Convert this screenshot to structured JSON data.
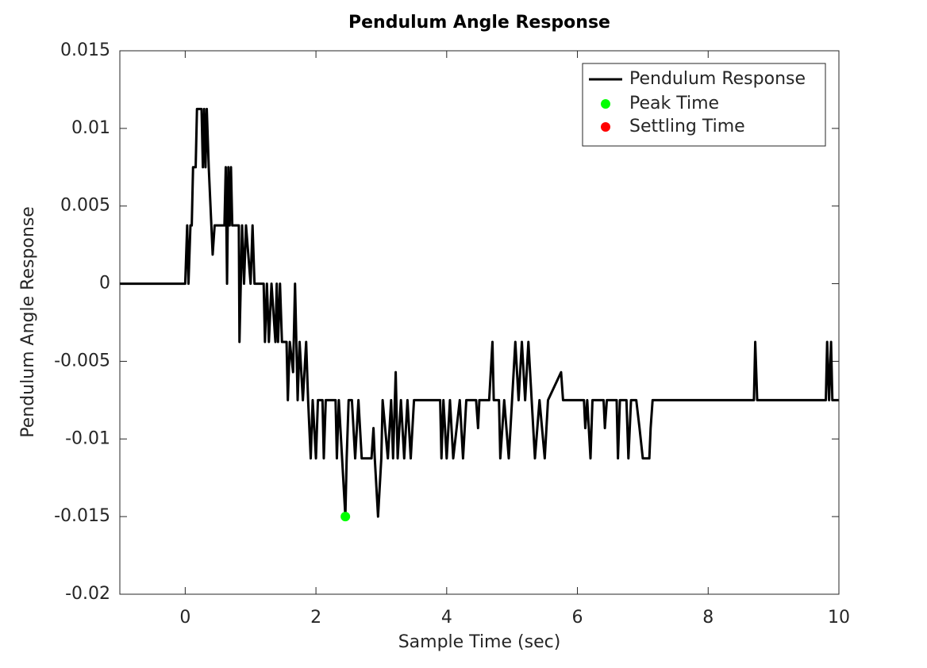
{
  "chart_data": {
    "type": "line",
    "title": "Pendulum Angle Response",
    "x_label": "Sample Time (sec)",
    "y_label": "Pendulum Angle Response",
    "xlim": [
      -1,
      10
    ],
    "xticks": [
      0,
      2,
      4,
      6,
      8,
      10
    ],
    "ylim": [
      -0.02,
      0.015
    ],
    "yticks": [
      -0.02,
      -0.015,
      -0.01,
      -0.005,
      0,
      0.005,
      0.01,
      0.015
    ],
    "grid": false,
    "legend": "northeast",
    "series": [
      {
        "name": "Pendulum Response",
        "color": "#000000",
        "kind": "line",
        "x": [
          -1,
          0,
          0.03,
          0.05,
          0.08,
          0.1,
          0.12,
          0.16,
          0.18,
          0.25,
          0.27,
          0.29,
          0.31,
          0.33,
          0.36,
          0.4,
          0.42,
          0.45,
          0.6,
          0.62,
          0.64,
          0.66,
          0.68,
          0.7,
          0.72,
          0.82,
          0.83,
          0.85,
          0.87,
          0.9,
          0.93,
          1.0,
          1.03,
          1.06,
          1.2,
          1.22,
          1.25,
          1.28,
          1.32,
          1.38,
          1.4,
          1.42,
          1.45,
          1.48,
          1.55,
          1.57,
          1.6,
          1.65,
          1.68,
          1.7,
          1.72,
          1.75,
          1.8,
          1.85,
          1.88,
          1.92,
          1.95,
          2.0,
          2.03,
          2.1,
          2.12,
          2.15,
          2.3,
          2.32,
          2.35,
          2.4,
          2.45,
          2.47,
          2.5,
          2.55,
          2.6,
          2.65,
          2.7,
          2.85,
          2.88,
          2.9,
          2.95,
          3.0,
          3.02,
          3.1,
          3.15,
          3.18,
          3.22,
          3.25,
          3.3,
          3.35,
          3.4,
          3.45,
          3.5,
          3.9,
          3.92,
          3.95,
          4.0,
          4.05,
          4.1,
          4.2,
          4.25,
          4.3,
          4.45,
          4.48,
          4.5,
          4.65,
          4.7,
          4.72,
          4.8,
          4.82,
          4.88,
          4.95,
          5.0,
          5.05,
          5.1,
          5.15,
          5.2,
          5.25,
          5.3,
          5.35,
          5.42,
          5.5,
          5.55,
          5.75,
          5.78,
          6.1,
          6.12,
          6.15,
          6.2,
          6.23,
          6.4,
          6.42,
          6.45,
          6.6,
          6.62,
          6.65,
          6.75,
          6.78,
          6.82,
          6.9,
          6.95,
          7.0,
          7.1,
          7.12,
          7.15,
          8.7,
          8.72,
          8.75,
          9.8,
          9.82,
          9.85,
          9.88,
          9.9,
          10
        ],
        "values": [
          0,
          0,
          0.00375,
          0,
          0.00375,
          0.00375,
          0.0075,
          0.0075,
          0.01125,
          0.01125,
          0.0075,
          0.01125,
          0.0075,
          0.01125,
          0.0075,
          0.00375,
          0.001875,
          0.00375,
          0.00375,
          0.0075,
          0,
          0.0075,
          0.00375,
          0.0075,
          0.00375,
          0.00375,
          -0.00375,
          0,
          0.00375,
          0,
          0.00375,
          0,
          0.00375,
          0,
          0,
          -0.00375,
          0,
          -0.00375,
          0,
          -0.00375,
          0,
          -0.00375,
          0,
          -0.00375,
          -0.00375,
          -0.0075,
          -0.00375,
          -0.0057,
          0,
          -0.00375,
          -0.0075,
          -0.00375,
          -0.0075,
          -0.00375,
          -0.0075,
          -0.01125,
          -0.0075,
          -0.01125,
          -0.0075,
          -0.0075,
          -0.01125,
          -0.0075,
          -0.0075,
          -0.01125,
          -0.0075,
          -0.01125,
          -0.015,
          -0.01125,
          -0.0075,
          -0.0075,
          -0.01125,
          -0.0075,
          -0.01125,
          -0.01125,
          -0.0093,
          -0.01125,
          -0.015,
          -0.01125,
          -0.0075,
          -0.01125,
          -0.0075,
          -0.01125,
          -0.0057,
          -0.01125,
          -0.0075,
          -0.01125,
          -0.0075,
          -0.01125,
          -0.0075,
          -0.0075,
          -0.01125,
          -0.0075,
          -0.01125,
          -0.0075,
          -0.01125,
          -0.0075,
          -0.01125,
          -0.0075,
          -0.0075,
          -0.0093,
          -0.0075,
          -0.0075,
          -0.00375,
          -0.0075,
          -0.0075,
          -0.01125,
          -0.0075,
          -0.01125,
          -0.0075,
          -0.00375,
          -0.0075,
          -0.00375,
          -0.0075,
          -0.00375,
          -0.0075,
          -0.01125,
          -0.0075,
          -0.01125,
          -0.0075,
          -0.0057,
          -0.0075,
          -0.0075,
          -0.0093,
          -0.0075,
          -0.01125,
          -0.0075,
          -0.0075,
          -0.0093,
          -0.0075,
          -0.0075,
          -0.01125,
          -0.0075,
          -0.0075,
          -0.01125,
          -0.0075,
          -0.0075,
          -0.0093,
          -0.01125,
          -0.01125,
          -0.0093,
          -0.0075,
          -0.0075,
          -0.00375,
          -0.0075,
          -0.0075,
          -0.00375,
          -0.0075,
          -0.00375,
          -0.0075,
          -0.0075
        ]
      },
      {
        "name": "Peak Time",
        "color": "#00ff00",
        "kind": "marker",
        "x": [
          2.45
        ],
        "values": [
          -0.015
        ]
      },
      {
        "name": "Settling Time",
        "color": "#ff0000",
        "kind": "marker",
        "x": [],
        "values": []
      }
    ]
  }
}
